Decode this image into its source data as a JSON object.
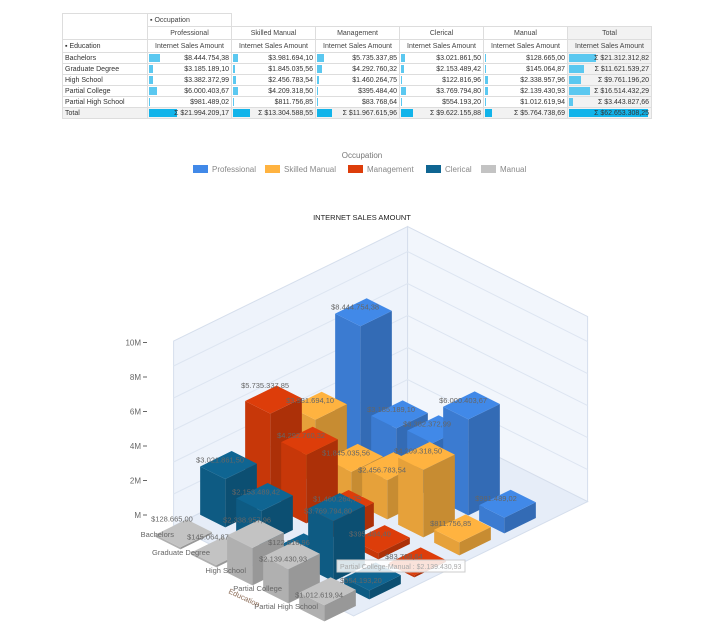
{
  "pivot": {
    "column_dimension": "Occupation",
    "row_dimension": "Education",
    "measure": "Internet Sales Amount",
    "columns": [
      "Professional",
      "Skilled Manual",
      "Management",
      "Clerical",
      "Manual",
      "Total"
    ],
    "rows": [
      {
        "label": "Bachelors",
        "cells": [
          "$8.444.754,38",
          "$3.981.694,10",
          "$5.735.337,85",
          "$3.021.861,50",
          "$128.665,00",
          "Σ $21.312.312,82"
        ]
      },
      {
        "label": "Graduate Degree",
        "cells": [
          "$3.185.189,10",
          "$1.845.035,56",
          "$4.292.760,32",
          "$2.153.489,42",
          "$145.064,87",
          "Σ $11.621.539,27"
        ]
      },
      {
        "label": "High School",
        "cells": [
          "$3.382.372,99",
          "$2.456.783,54",
          "$1.460.264,75",
          "$122.816,96",
          "$2.338.957,96",
          "Σ $9.761.196,20"
        ]
      },
      {
        "label": "Partial College",
        "cells": [
          "$6.000.403,67",
          "$4.209.318,50",
          "$395.484,40",
          "$3.769.794,80",
          "$2.139.430,93",
          "Σ $16.514.432,29"
        ]
      },
      {
        "label": "Partial High School",
        "cells": [
          "$981.489,02",
          "$811.756,85",
          "$83.768,64",
          "$554.193,20",
          "$1.012.619,94",
          "Σ $3.443.827,66"
        ]
      },
      {
        "label": "Total",
        "cells": [
          "Σ $21.994.209,17",
          "Σ $13.304.588,55",
          "Σ $11.967.615,96",
          "Σ $9.622.155,88",
          "Σ $5.764.738,69",
          "Σ $62.653.308,25"
        ]
      }
    ],
    "bar_color": "#5bc8f0"
  },
  "chart_data": {
    "type": "bar3d",
    "title": "INTERNET SALES AMOUNT",
    "legend_title": "Occupation",
    "legend_placement": "top",
    "xlabel": "Education",
    "categories": [
      "Bachelors",
      "Graduate Degree",
      "High School",
      "Partial College",
      "Partial High School"
    ],
    "yticks": [
      "M",
      "2M",
      "4M",
      "6M",
      "8M",
      "10M"
    ],
    "ylim": [
      0,
      10000000
    ],
    "series": [
      {
        "name": "Professional",
        "color": "#4189e8",
        "values": [
          8444754.38,
          3185189.1,
          3382372.99,
          6000403.67,
          981489.02
        ],
        "labels": [
          "$8.444.754,38",
          "$3.185.189,10",
          "$3.382.372,99",
          "$6.000.403,67",
          "$981.489,02"
        ]
      },
      {
        "name": "Skilled Manual",
        "color": "#ffb340",
        "values": [
          3981694.1,
          1845035.56,
          2456783.54,
          4209318.5,
          811756.85
        ],
        "labels": [
          "$3.981.694,10",
          "$1.845.035,56",
          "$2.456.783,54",
          "$4.209.318,50",
          "$811.756,85"
        ]
      },
      {
        "name": "Management",
        "color": "#dd3d0a",
        "values": [
          5735337.85,
          4292760.32,
          1460264.75,
          395484.4,
          83768.64
        ],
        "labels": [
          "$5.735.337,85",
          "$4.292.760,32",
          "$1.460.264,75",
          "$395.484,40",
          "$83.768,64"
        ]
      },
      {
        "name": "Clerical",
        "color": "#0f6592",
        "values": [
          3021861.5,
          2153489.42,
          122816.96,
          3769794.8,
          554193.2
        ],
        "labels": [
          "$3.021.861,50",
          "$2.153.489,42",
          "$122.816,96",
          "$3.769.794,80",
          "$554.193,20"
        ]
      },
      {
        "name": "Manual",
        "color": "#c3c3c3",
        "values": [
          128665.0,
          145064.87,
          2338957.96,
          2139430.93,
          1012619.94
        ],
        "labels": [
          "$128.665,00",
          "$145.064,87",
          "$2.338.957,96",
          "$2.139.430,93",
          "$1.012.619,94"
        ]
      }
    ],
    "tooltip": "Partial College-Manual : $2.139.430,93"
  }
}
